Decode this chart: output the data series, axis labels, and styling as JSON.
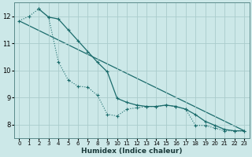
{
  "xlabel": "Humidex (Indice chaleur)",
  "background_color": "#cce8e8",
  "grid_color": "#aacccc",
  "line_color": "#1a6b6b",
  "xlim": [
    -0.5,
    23.5
  ],
  "ylim": [
    7.5,
    12.5
  ],
  "yticks": [
    8,
    9,
    10,
    11,
    12
  ],
  "xticks": [
    0,
    1,
    2,
    3,
    4,
    5,
    6,
    7,
    8,
    9,
    10,
    11,
    12,
    13,
    14,
    15,
    16,
    17,
    18,
    19,
    20,
    21,
    22,
    23
  ],
  "series1_x": [
    0,
    1,
    2,
    3,
    4,
    5,
    6,
    7,
    8,
    9,
    10,
    11,
    12,
    13,
    14,
    15,
    16,
    17,
    18,
    19,
    20,
    21,
    22,
    23
  ],
  "series1_y": [
    11.83,
    12.0,
    12.27,
    11.97,
    10.32,
    9.65,
    9.42,
    9.38,
    9.08,
    8.38,
    8.32,
    8.57,
    8.62,
    8.67,
    8.67,
    8.72,
    8.67,
    8.57,
    7.97,
    7.97,
    7.87,
    7.77,
    7.77,
    7.77
  ],
  "series2_x": [
    2,
    3,
    4,
    5,
    6,
    7,
    8,
    9,
    10,
    11,
    12,
    13,
    14,
    15,
    16,
    17,
    18,
    19,
    20,
    21,
    22,
    23
  ],
  "series2_y": [
    12.27,
    11.97,
    11.9,
    11.5,
    11.1,
    10.7,
    10.3,
    9.95,
    8.97,
    8.82,
    8.72,
    8.67,
    8.67,
    8.72,
    8.67,
    8.57,
    8.37,
    8.12,
    7.97,
    7.82,
    7.77,
    7.77
  ],
  "series3_x": [
    0,
    23
  ],
  "series3_y": [
    11.83,
    7.77
  ]
}
